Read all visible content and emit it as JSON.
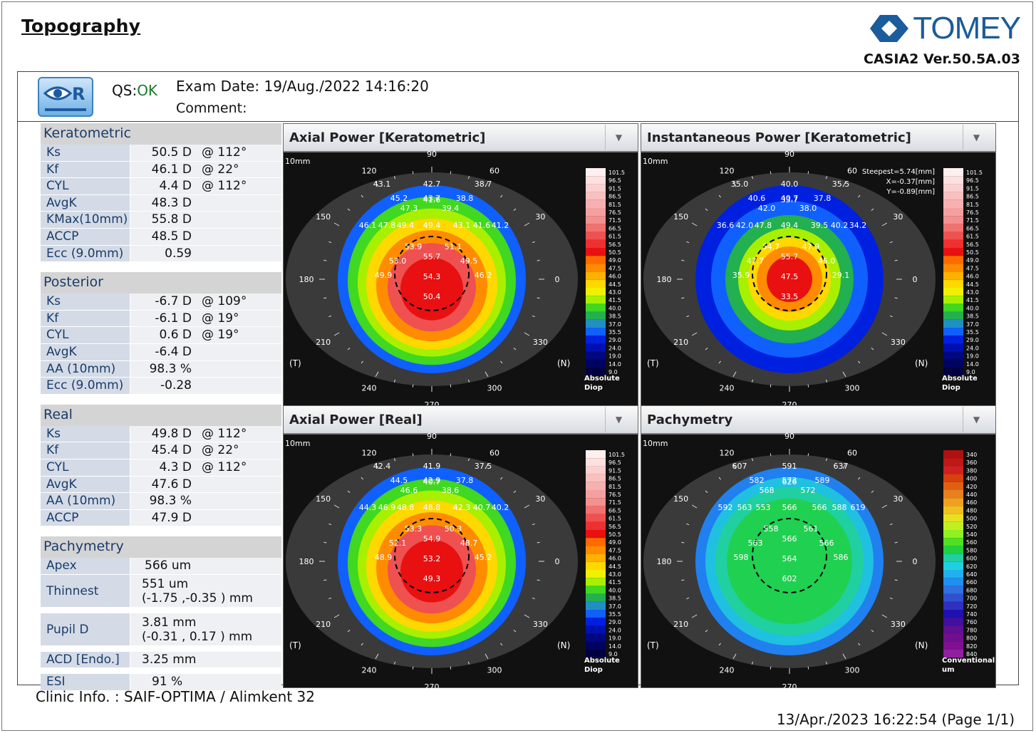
{
  "title": "Topography",
  "brand": {
    "name": "TOMEY",
    "version": "CASIA2 Ver.50.5A.03"
  },
  "header": {
    "eye": "R",
    "qs_label": "QS:",
    "qs_value": "OK",
    "exam_date_label": "Exam Date:",
    "exam_date": "19/Aug./2022 14:16:20",
    "comment_label": "Comment:"
  },
  "keratometric": {
    "heading": "Keratometric",
    "rows": [
      {
        "label": "Ks",
        "value": "50.5 D",
        "axis": "@ 112°"
      },
      {
        "label": "Kf",
        "value": "46.1 D",
        "axis": "@ 22°"
      },
      {
        "label": "CYL",
        "value": "4.4 D",
        "axis": "@ 112°"
      },
      {
        "label": "AvgK",
        "value": "48.3 D",
        "axis": ""
      },
      {
        "label": "KMax(10mm)",
        "value": "55.8 D",
        "axis": ""
      },
      {
        "label": "ACCP",
        "value": "48.5 D",
        "axis": ""
      },
      {
        "label": "Ecc (9.0mm)",
        "value": "0.59",
        "axis": ""
      }
    ]
  },
  "posterior": {
    "heading": "Posterior",
    "rows": [
      {
        "label": "Ks",
        "value": "-6.7 D",
        "axis": "@ 109°"
      },
      {
        "label": "Kf",
        "value": "-6.1 D",
        "axis": "@ 19°"
      },
      {
        "label": "CYL",
        "value": "0.6 D",
        "axis": "@ 19°"
      },
      {
        "label": "AvgK",
        "value": "-6.4 D",
        "axis": ""
      },
      {
        "label": "AA (10mm)",
        "value": "98.3 %",
        "axis": ""
      },
      {
        "label": "Ecc (9.0mm)",
        "value": "-0.28",
        "axis": ""
      }
    ]
  },
  "real": {
    "heading": "Real",
    "rows": [
      {
        "label": "Ks",
        "value": "49.8 D",
        "axis": "@ 112°"
      },
      {
        "label": "Kf",
        "value": "45.4 D",
        "axis": "@ 22°"
      },
      {
        "label": "CYL",
        "value": "4.3 D",
        "axis": "@ 112°"
      },
      {
        "label": "AvgK",
        "value": "47.6 D",
        "axis": ""
      },
      {
        "label": "AA (10mm)",
        "value": "98.3 %",
        "axis": ""
      },
      {
        "label": "ACCP",
        "value": "47.9 D",
        "axis": ""
      }
    ]
  },
  "pachymetry": {
    "heading": "Pachymetry",
    "apex_label": "Apex",
    "apex_value": "566 um",
    "thinnest_label": "Thinnest",
    "thinnest_value": "551 um",
    "thinnest_pos": "(-1.75 ,-0.35 )  mm"
  },
  "pupil": {
    "label": "Pupil D",
    "value": "3.81 mm",
    "pos": "(-0.31 , 0.17 )  mm"
  },
  "acd": {
    "label": "ACD [Endo.]",
    "value": "3.25 mm"
  },
  "esi": {
    "label": "ESI",
    "value": "91 %"
  },
  "maps": [
    {
      "title": "Axial Power [Keratometric]",
      "dropdown": "▼",
      "scale_caption": [
        "Absolute",
        "Diop"
      ],
      "extra": [],
      "values": [
        "41.6",
        "43.1",
        "42.7",
        "38.7",
        "45.2",
        "43.7",
        "38.8",
        "47.3",
        "39.4",
        "46.1",
        "47.8",
        "49.4",
        "49.4",
        "43.1",
        "41.6",
        "41.2",
        "53.9",
        "51.1",
        "53.0",
        "55.7",
        "49.5",
        "49.9",
        "54.3",
        "46.2",
        "50.4"
      ]
    },
    {
      "title": "Instantaneous Power [Keratometric]",
      "dropdown": "▼",
      "scale_caption": [
        "Absolute",
        "Diop"
      ],
      "extra": [
        "Steepest=5.74[mm]",
        "X=-0.37[mm]",
        "Y=-0.89[mm]"
      ],
      "values": [
        "33.7",
        "35.0",
        "40.0",
        "35.5",
        "40.6",
        "40.7",
        "37.8",
        "42.0",
        "38.0",
        "36.6",
        "42.0",
        "47.8",
        "49.4",
        "39.5",
        "40.2",
        "34.2",
        "54.7",
        "47.9",
        "47.7",
        "55.7",
        "45.0",
        "35.9",
        "47.5",
        "29.1",
        "33.5"
      ]
    },
    {
      "title": "Axial Power [Real]",
      "dropdown": "▼",
      "scale_caption": [
        "Absolute",
        "Diop"
      ],
      "extra": [],
      "values": [
        "40.7",
        "42.4",
        "41.9",
        "37.5",
        "44.5",
        "42.9",
        "37.8",
        "46.6",
        "38.6",
        "44.3",
        "46.9",
        "48.8",
        "48.8",
        "42.3",
        "40.7",
        "40.2",
        "53.3",
        "50.3",
        "52.1",
        "54.9",
        "48.7",
        "48.9",
        "53.2",
        "45.2",
        "49.3"
      ]
    },
    {
      "title": "Pachymetry",
      "dropdown": "▼",
      "scale_caption": [
        "Conventional",
        "um"
      ],
      "extra": [],
      "values": [
        "626",
        "607",
        "591",
        "637",
        "582",
        "573",
        "589",
        "568",
        "572",
        "592",
        "563",
        "553",
        "566",
        "566",
        "588",
        "619",
        "558",
        "561",
        "563",
        "566",
        "566",
        "598",
        "564",
        "586",
        "602"
      ]
    }
  ],
  "diopter_scale": [
    "101.5",
    "96.5",
    "91.5",
    "86.5",
    "81.5",
    "76.5",
    "71.5",
    "66.5",
    "61.5",
    "56.5",
    "50.5",
    "49.0",
    "47.5",
    "46.0",
    "44.5",
    "43.0",
    "41.5",
    "40.0",
    "38.5",
    "37.0",
    "35.5",
    "29.0",
    "24.0",
    "19.0",
    "14.0",
    "9.0"
  ],
  "pachy_scale": [
    "340",
    "360",
    "380",
    "400",
    "420",
    "440",
    "460",
    "480",
    "500",
    "520",
    "540",
    "560",
    "580",
    "600",
    "620",
    "640",
    "660",
    "680",
    "700",
    "720",
    "740",
    "760",
    "780",
    "800",
    "820",
    "840"
  ],
  "map_labels": {
    "mm": "10mm",
    "angles": [
      "90",
      "60",
      "30",
      "0",
      "330",
      "300",
      "270",
      "240",
      "210",
      "180",
      "150",
      "120"
    ],
    "temporal": "(T)",
    "nasal": "(N)"
  },
  "footer": {
    "clinic": "Clinic Info. :   SAIF-OPTIMA / Alimkent 32",
    "printed": "13/Apr./2023 16:22:54      (Page 1/1)"
  }
}
